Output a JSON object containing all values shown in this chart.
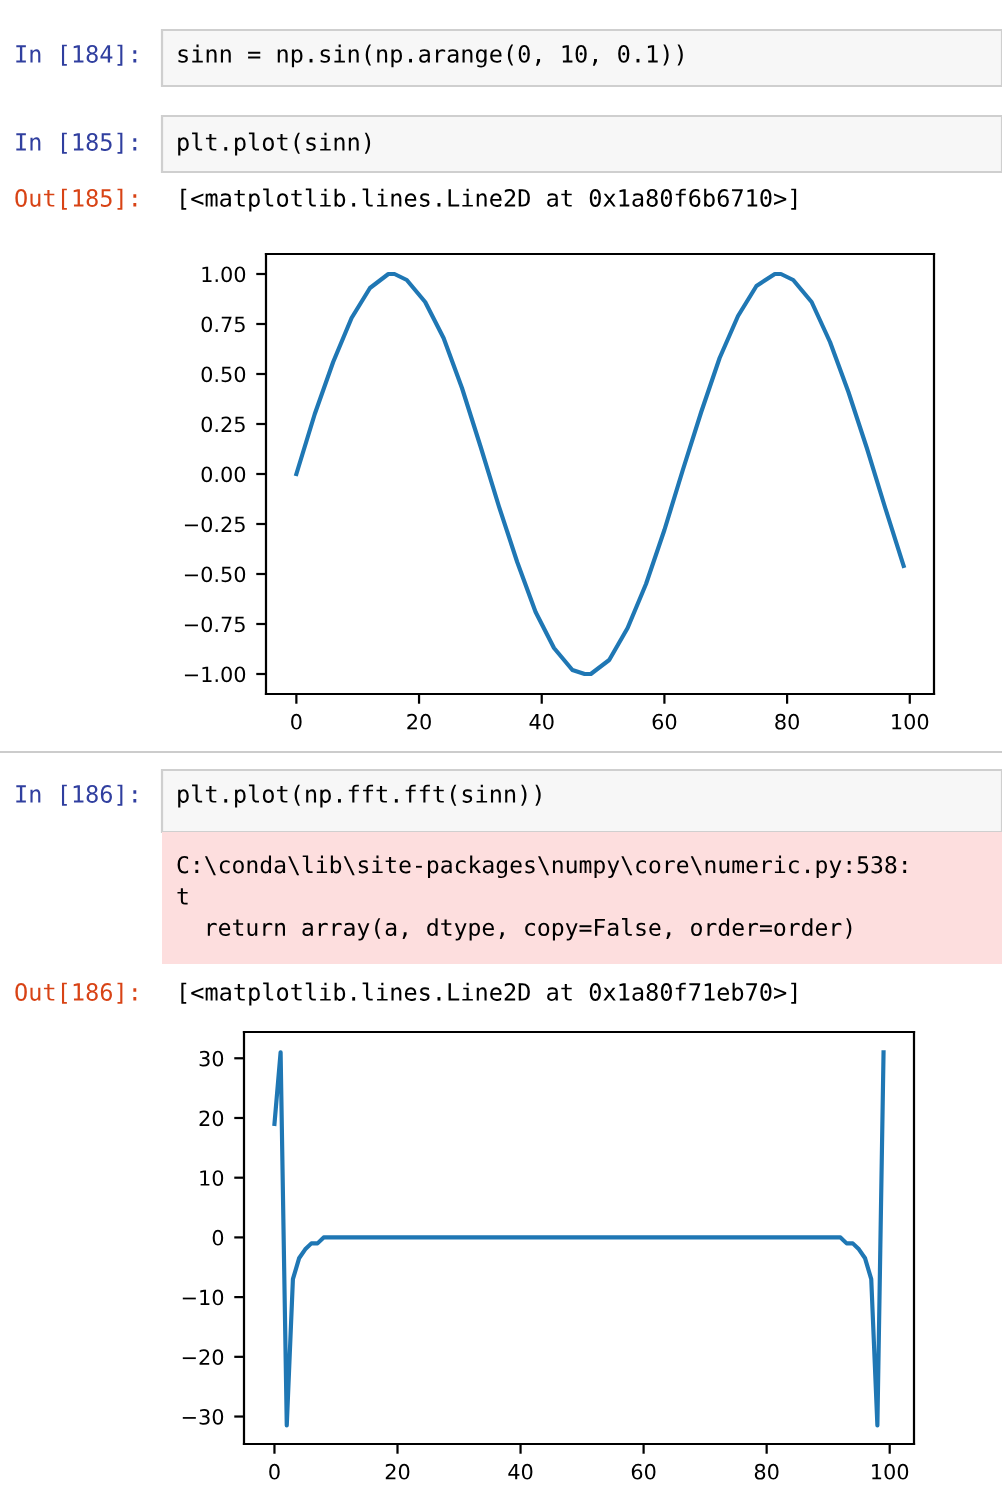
{
  "chart_data": [
    {
      "type": "line",
      "annotations": [
        "In [184]:",
        "sinn = np.sin(np.arange(0, 10, 0.1))",
        "In [185]:",
        "plt.plot(sinn)",
        "Out[185]:",
        "[<matplotlib.lines.Line2D at 0x1a80f6b6710>]"
      ],
      "series": [
        {
          "color": "#1f77b4",
          "x": [
            0,
            3,
            6,
            9,
            12,
            15,
            16,
            18,
            21,
            24,
            27,
            30,
            33,
            36,
            39,
            42,
            45,
            47,
            48,
            51,
            54,
            57,
            60,
            63,
            66,
            69,
            72,
            75,
            78,
            79,
            81,
            84,
            87,
            90,
            93,
            96,
            99
          ],
          "values": [
            0,
            0.3,
            0.56,
            0.78,
            0.93,
            1.0,
            1.0,
            0.97,
            0.86,
            0.68,
            0.43,
            0.14,
            -0.16,
            -0.44,
            -0.69,
            -0.87,
            -0.98,
            -1.0,
            -1.0,
            -0.93,
            -0.77,
            -0.55,
            -0.28,
            0.02,
            0.31,
            0.58,
            0.79,
            0.94,
            1.0,
            1.0,
            0.97,
            0.86,
            0.66,
            0.41,
            0.13,
            -0.17,
            -0.46
          ]
        }
      ],
      "xlim": [
        -4.95,
        103.95
      ],
      "ylim": [
        -1.1,
        1.1
      ],
      "xticks": [
        0,
        20,
        40,
        60,
        80,
        100
      ],
      "yticks": [
        {
          "value": -1,
          "label": "−1.00"
        },
        {
          "value": -0.75,
          "label": "−0.75"
        },
        {
          "value": -0.5,
          "label": "−0.50"
        },
        {
          "value": -0.25,
          "label": "−0.25"
        },
        {
          "value": 0,
          "label": "0.00"
        },
        {
          "value": 0.25,
          "label": "0.25"
        },
        {
          "value": 0.5,
          "label": "0.50"
        },
        {
          "value": 0.75,
          "label": "0.75"
        },
        {
          "value": 1,
          "label": "1.00"
        }
      ]
    },
    {
      "type": "line",
      "annotations": [
        "In [186]:",
        "plt.plot(np.fft.fft(sinn))",
        "C:\\conda\\lib\\site-packages\\numpy\\core\\numeric.py:538:\nt\n  return array(a, dtype, copy=False, order=order)",
        "Out[186]:",
        "[<matplotlib.lines.Line2D at 0x1a80f71eb70>]"
      ],
      "series": [
        {
          "color": "#1f77b4",
          "x": [
            0,
            1,
            2,
            3,
            4,
            5,
            6,
            7,
            8,
            10,
            12,
            15,
            20,
            50,
            80,
            85,
            88,
            90,
            92,
            93,
            94,
            95,
            96,
            97,
            98,
            99
          ],
          "values": [
            19,
            31,
            -31.5,
            -7,
            -3.5,
            -2,
            -1,
            -1,
            0,
            0,
            0,
            0,
            0,
            0,
            0,
            0,
            0,
            0,
            0,
            -1,
            -1,
            -2,
            -3.5,
            -7,
            -31.5,
            31
          ]
        }
      ],
      "xlim": [
        -4.95,
        103.95
      ],
      "ylim": [
        -34.6,
        34.4
      ],
      "xticks": [
        0,
        20,
        40,
        60,
        80,
        100
      ],
      "yticks": [
        {
          "value": -30,
          "label": "−30"
        },
        {
          "value": -20,
          "label": "−20"
        },
        {
          "value": -10,
          "label": "−10"
        },
        0,
        10,
        20,
        30
      ]
    }
  ]
}
